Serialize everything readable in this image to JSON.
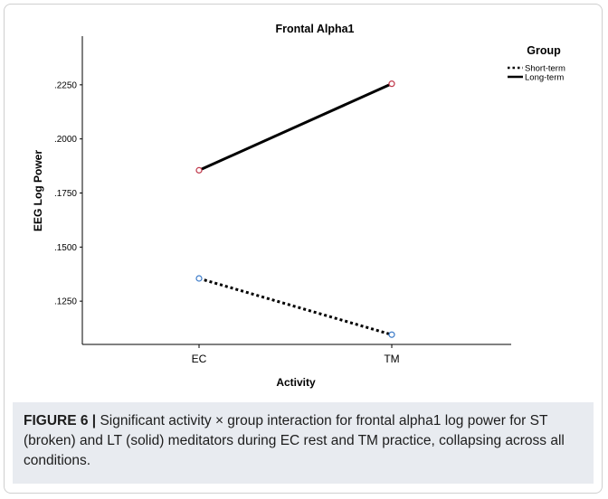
{
  "chart_data": {
    "type": "line",
    "title": "Frontal Alpha1",
    "xlabel": "Activity",
    "ylabel": "EEG Log Power",
    "categories": [
      "EC",
      "TM"
    ],
    "y_ticks": [
      ".1250",
      ".1500",
      ".1750",
      ".2000",
      ".2250"
    ],
    "ylim": [
      0.105,
      0.2475
    ],
    "legend": {
      "title": "Group",
      "position": "top-right"
    },
    "series": [
      {
        "name": "Short-term",
        "style": "dotted",
        "marker_color": "#3d7cc9",
        "values": [
          0.1355,
          0.1095
        ]
      },
      {
        "name": "Long-term",
        "style": "solid",
        "marker_color": "#c0394b",
        "values": [
          0.1855,
          0.2255
        ]
      }
    ]
  },
  "caption": {
    "label": "FIGURE 6 |",
    "text": " Significant activity × group interaction for frontal alpha1 log power for ST (broken) and LT (solid) meditators during EC rest and TM practice, collapsing across all conditions."
  }
}
